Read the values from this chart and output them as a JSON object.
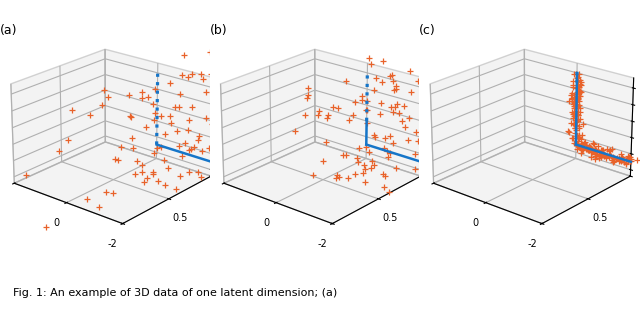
{
  "subplot_labels": [
    "(a)",
    "(b)",
    "(c)"
  ],
  "scatter_color": "#E8622A",
  "scatter_marker": "+",
  "line_color": "#1575C8",
  "fig_width": 6.4,
  "fig_height": 3.27,
  "background_color": "#ffffff",
  "pane_color": "#e8e8e8",
  "seed": 42,
  "caption": "Fig. 1: An example of 3D data of one latent dimension; (a)",
  "caption_fontsize": 8,
  "elev": 22,
  "azim": -50
}
